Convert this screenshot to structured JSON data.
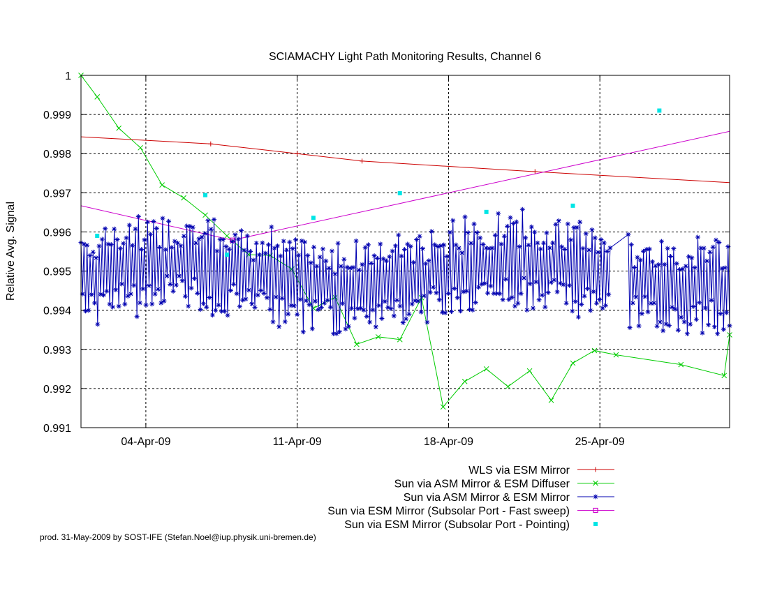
{
  "chart_data": {
    "type": "line",
    "title": "SCIAMACHY Light Path Monitoring Results, Channel 6",
    "ylabel": "Relative Avg. Signal",
    "xlabel": "",
    "xlim": [
      "2009-04-01",
      "2009-05-01"
    ],
    "ylim": [
      0.991,
      1.0
    ],
    "grid": true,
    "legend_position": "bottom-right",
    "x_ticks": [
      {
        "date": "2009-04-04",
        "label": "04-Apr-09"
      },
      {
        "date": "2009-04-11",
        "label": "11-Apr-09"
      },
      {
        "date": "2009-04-18",
        "label": "18-Apr-09"
      },
      {
        "date": "2009-04-25",
        "label": "25-Apr-09"
      }
    ],
    "y_ticks": [
      {
        "value": 0.991,
        "label": "0.991"
      },
      {
        "value": 0.992,
        "label": "0.992"
      },
      {
        "value": 0.993,
        "label": "0.993"
      },
      {
        "value": 0.994,
        "label": "0.994"
      },
      {
        "value": 0.995,
        "label": "0.995"
      },
      {
        "value": 0.996,
        "label": "0.996"
      },
      {
        "value": 0.997,
        "label": "0.997"
      },
      {
        "value": 0.998,
        "label": "0.998"
      },
      {
        "value": 0.999,
        "label": "0.999"
      },
      {
        "value": 1.0,
        "label": "1"
      }
    ],
    "series": [
      {
        "name": "WLS via ESM Mirror",
        "color": "#cc0000",
        "marker": "plus",
        "line": true,
        "x": [
          "2009-04-01",
          "2009-04-07",
          "2009-04-11",
          "2009-04-14",
          "2009-04-22",
          "2009-05-01"
        ],
        "y": [
          0.99843,
          0.99825,
          0.998,
          0.99781,
          0.99754,
          0.99726
        ],
        "marker_x": [
          "2009-04-07",
          "2009-04-11",
          "2009-04-14",
          "2009-04-22"
        ]
      },
      {
        "name": "Sun via ASM Mirror & ESM Diffuser",
        "color": "#00cc00",
        "marker": "cross",
        "line": true,
        "x": [
          "2009-04-01",
          "2009-04-01 18:00",
          "2009-04-02 18:00",
          "2009-04-03 18:00",
          "2009-04-04 18:00",
          "2009-04-05 18:00",
          "2009-04-06 18:00",
          "2009-04-07 18:00",
          "2009-04-08 18:00",
          "2009-04-09 18:00",
          "2009-04-10 18:00",
          "2009-04-11 18:00",
          "2009-04-12 18:00",
          "2009-04-13 18:00",
          "2009-04-14 18:00",
          "2009-04-15 18:00",
          "2009-04-16 18:00",
          "2009-04-17 18:00",
          "2009-04-18 18:00",
          "2009-04-19 18:00",
          "2009-04-20 18:00",
          "2009-04-21 18:00",
          "2009-04-22 18:00",
          "2009-04-23 18:00",
          "2009-04-24 18:00",
          "2009-04-25 18:00",
          "2009-04-28 18:00",
          "2009-04-30 18:00",
          "2009-05-01"
        ],
        "y": [
          1.0,
          0.99945,
          0.99865,
          0.99815,
          0.9972,
          0.99687,
          0.99643,
          0.9959,
          0.99542,
          0.9954,
          0.99505,
          0.99405,
          0.99433,
          0.99313,
          0.99332,
          0.99325,
          0.99432,
          0.99153,
          0.99218,
          0.9925,
          0.99205,
          0.99245,
          0.9917,
          0.99265,
          0.99297,
          0.99286,
          0.99261,
          0.99233,
          0.99337
        ]
      },
      {
        "name": "Sun via ASM Mirror & ESM Mirror",
        "color": "#0000b0",
        "marker": "star",
        "line": true,
        "x": [
          "2009-04-01",
          "2009-05-01"
        ],
        "y": [
          0.9952,
          0.9952
        ],
        "y_range": [
          0.9934,
          0.9966
        ],
        "note": "dense daily-orbit series oscillating between about 0.9937 and 0.9965"
      },
      {
        "name": "Sun via ESM Mirror (Subsolar Port - Fast sweep)",
        "color": "#cc00cc",
        "marker": "box",
        "line": true,
        "x": [
          "2009-04-01",
          "2009-04-08",
          "2009-05-01"
        ],
        "y": [
          0.99667,
          0.99579,
          0.99857
        ],
        "marker_x": [
          "2009-04-08"
        ]
      },
      {
        "name": "Sun via ESM Mirror (Subsolar Port - Pointing)",
        "color": "#00e5e5",
        "marker": "square",
        "line": false,
        "x": [
          "2009-04-01 18:00",
          "2009-04-06 18:00",
          "2009-04-07 18:00",
          "2009-04-11 18:00",
          "2009-04-15 18:00",
          "2009-04-19 18:00",
          "2009-04-23 18:00",
          "2009-04-27 18:00"
        ],
        "y": [
          0.9959,
          0.99694,
          0.99542,
          0.99636,
          0.99699,
          0.99651,
          0.99667,
          0.9991
        ]
      }
    ]
  },
  "footer": "prod. 31-May-2009 by SOST-IFE (Stefan.Noel@iup.physik.uni-bremen.de)"
}
